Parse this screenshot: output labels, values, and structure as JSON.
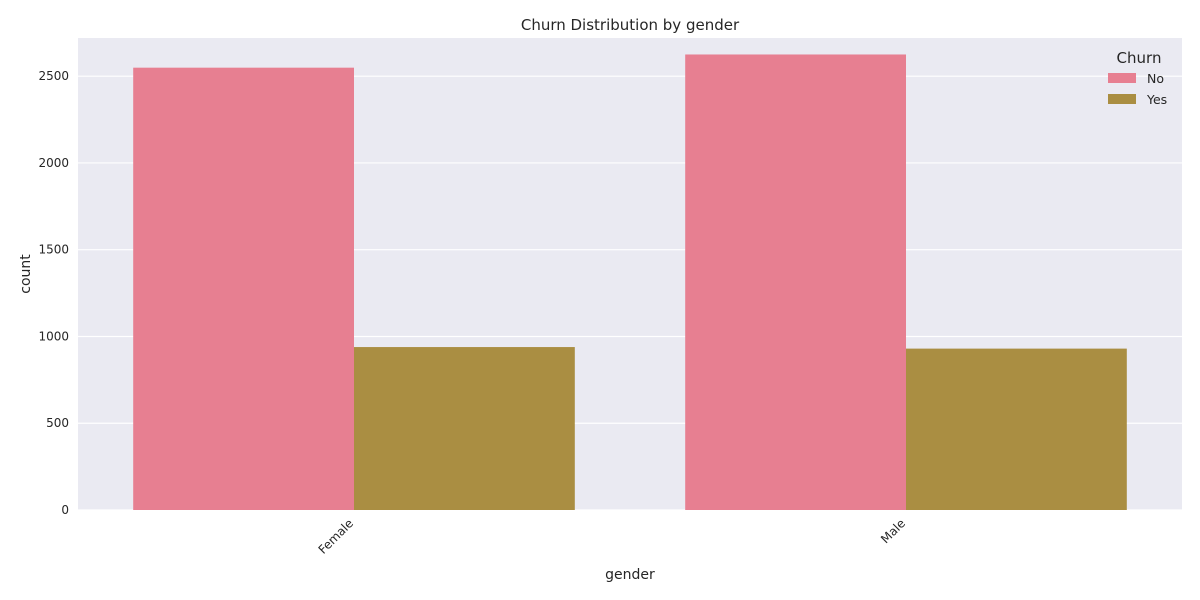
{
  "chart_data": {
    "type": "bar",
    "title": "Churn Distribution by gender",
    "xlabel": "gender",
    "ylabel": "count",
    "categories": [
      "Female",
      "Male"
    ],
    "series": [
      {
        "name": "No",
        "values": [
          2549,
          2625
        ]
      },
      {
        "name": "Yes",
        "values": [
          939,
          930
        ]
      }
    ],
    "ylim": [
      0,
      2720
    ],
    "yticks": [
      0,
      500,
      1000,
      1500,
      2000,
      2500
    ],
    "legend": {
      "title": "Churn",
      "placement": "top-right"
    },
    "grid": true,
    "colors": {
      "No": "#e77f91",
      "Yes": "#aa8e42",
      "plot_background": "#eaeaf2",
      "gridline": "#ffffff"
    }
  }
}
